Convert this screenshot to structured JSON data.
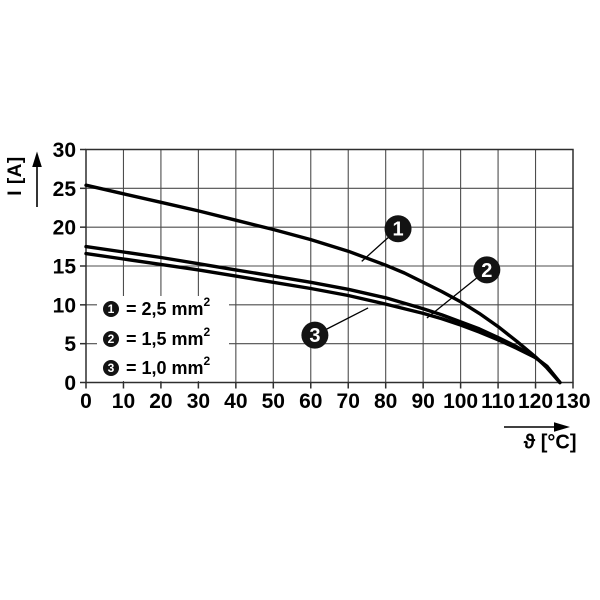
{
  "chart_data": {
    "type": "line",
    "title": "",
    "xlabel": "ϑ [°C]",
    "ylabel": "I [A]",
    "xlim": [
      0,
      130
    ],
    "ylim": [
      0,
      30
    ],
    "x_ticks": [
      0,
      10,
      20,
      30,
      40,
      50,
      60,
      70,
      80,
      90,
      100,
      110,
      120,
      130
    ],
    "y_ticks": [
      0,
      5,
      10,
      15,
      20,
      25,
      30
    ],
    "grid": true,
    "legend": {
      "position": "inside-lower-left",
      "items": [
        {
          "digit": "1",
          "text": "= 2,5 mm",
          "sup": "2"
        },
        {
          "digit": "2",
          "text": "= 1,5 mm",
          "sup": "2"
        },
        {
          "digit": "3",
          "text": "= 1,0 mm",
          "sup": "2"
        }
      ]
    },
    "series": [
      {
        "name": "2,5 mm²",
        "callout": "1",
        "points": [
          [
            0,
            25.4
          ],
          [
            10,
            24.3
          ],
          [
            20,
            23.2
          ],
          [
            30,
            22.1
          ],
          [
            40,
            20.9
          ],
          [
            50,
            19.7
          ],
          [
            60,
            18.4
          ],
          [
            70,
            16.9
          ],
          [
            80,
            15.1
          ],
          [
            85,
            14.1
          ],
          [
            90,
            12.9
          ],
          [
            95,
            11.7
          ],
          [
            100,
            10.4
          ],
          [
            105,
            8.9
          ],
          [
            110,
            7.2
          ],
          [
            115,
            5.3
          ],
          [
            120,
            3.3
          ],
          [
            123,
            1.9
          ],
          [
            126.5,
            0
          ]
        ]
      },
      {
        "name": "1,5 mm²",
        "callout": "2",
        "points": [
          [
            0,
            17.5
          ],
          [
            10,
            16.8
          ],
          [
            20,
            16.1
          ],
          [
            30,
            15.3
          ],
          [
            40,
            14.5
          ],
          [
            50,
            13.7
          ],
          [
            60,
            12.9
          ],
          [
            70,
            12.0
          ],
          [
            80,
            10.9
          ],
          [
            90,
            9.5
          ],
          [
            95,
            8.7
          ],
          [
            100,
            7.8
          ],
          [
            105,
            6.9
          ],
          [
            110,
            5.8
          ],
          [
            115,
            4.6
          ],
          [
            120,
            3.2
          ],
          [
            123,
            2.1
          ],
          [
            126.5,
            0
          ]
        ]
      },
      {
        "name": "1,0 mm²",
        "callout": "3",
        "points": [
          [
            0,
            16.6
          ],
          [
            10,
            15.9
          ],
          [
            20,
            15.2
          ],
          [
            30,
            14.5
          ],
          [
            40,
            13.7
          ],
          [
            50,
            12.9
          ],
          [
            60,
            12.1
          ],
          [
            70,
            11.2
          ],
          [
            80,
            10.1
          ],
          [
            90,
            8.9
          ],
          [
            95,
            8.2
          ],
          [
            100,
            7.4
          ],
          [
            105,
            6.5
          ],
          [
            110,
            5.5
          ],
          [
            115,
            4.4
          ],
          [
            120,
            3.2
          ],
          [
            123,
            2.1
          ],
          [
            126.5,
            0
          ]
        ]
      }
    ],
    "callouts": [
      {
        "label": "1",
        "at": [
          83.3,
          19.8
        ],
        "tip": [
          73.6,
          15.6
        ]
      },
      {
        "label": "2",
        "at": [
          107.0,
          14.5
        ],
        "tip": [
          91.0,
          8.3
        ]
      },
      {
        "label": "3",
        "at": [
          61.1,
          6.1
        ],
        "tip": [
          75.3,
          9.6
        ]
      }
    ],
    "colors": {
      "curve": "#000000",
      "grid": "#4d4d4d",
      "axis": "#2e2e2e",
      "badge": "#131313",
      "badge_text": "#ffffff",
      "background": "#ffffff"
    }
  }
}
